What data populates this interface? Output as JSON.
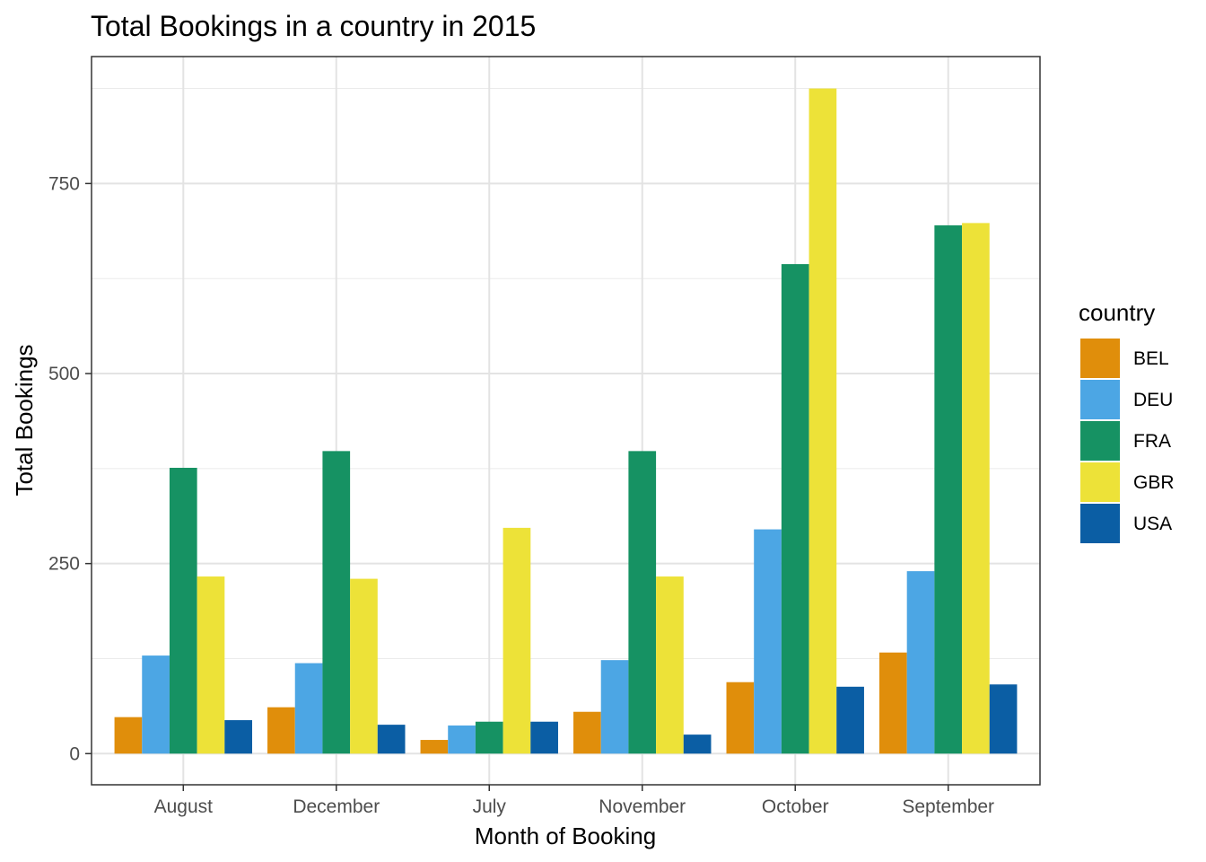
{
  "chart_data": {
    "type": "bar",
    "title": "Total Bookings in a country in 2015",
    "xlabel": "Month of Booking",
    "ylabel": "Total Bookings",
    "categories": [
      "August",
      "December",
      "July",
      "November",
      "October",
      "September"
    ],
    "series": [
      {
        "name": "BEL",
        "color": "#E08E0B",
        "values": [
          48,
          61,
          18,
          55,
          94,
          133
        ]
      },
      {
        "name": "DEU",
        "color": "#4CA6E4",
        "values": [
          129,
          119,
          37,
          123,
          295,
          240
        ]
      },
      {
        "name": "FRA",
        "color": "#169263",
        "values": [
          376,
          398,
          42,
          398,
          644,
          695
        ]
      },
      {
        "name": "GBR",
        "color": "#EDE238",
        "values": [
          233,
          230,
          297,
          233,
          875,
          698
        ]
      },
      {
        "name": "USA",
        "color": "#0B5EA4",
        "values": [
          44,
          38,
          42,
          25,
          88,
          91
        ]
      }
    ],
    "ylim": [
      -41,
      917
    ],
    "yticks": [
      0,
      250,
      500,
      750
    ],
    "ytick_labels": [
      "0",
      "250",
      "500",
      "750"
    ],
    "grid": true,
    "legend": {
      "title": "country",
      "position": "right"
    }
  }
}
